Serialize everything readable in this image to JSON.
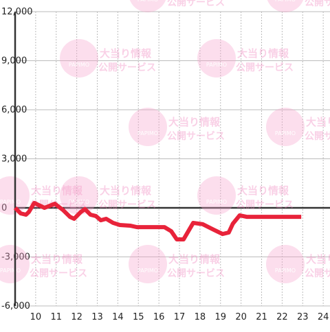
{
  "chart_data": {
    "type": "line",
    "watermark": {
      "logo": "PAPIMO",
      "line1": "大当り情報",
      "line2": "公開サービス"
    },
    "x": [
      9,
      9.27,
      9.53,
      9.67,
      9.93,
      10.43,
      10.93,
      11.33,
      11.67,
      11.87,
      12.2,
      12.4,
      12.67,
      12.93,
      13.17,
      13.43,
      13.77,
      14.1,
      14.6,
      14.93,
      16.27,
      16.6,
      16.87,
      17.2,
      17.67,
      18.13,
      18.67,
      19.1,
      19.4,
      19.6,
      19.93,
      20.27,
      22.93
    ],
    "series": [
      {
        "color": "#e8233a",
        "values": [
          0,
          -340,
          -420,
          -250,
          300,
          0,
          250,
          -130,
          -550,
          -670,
          -250,
          -80,
          -420,
          -500,
          -760,
          -670,
          -920,
          -1050,
          -1090,
          -1180,
          -1180,
          -1430,
          -1930,
          -1930,
          -920,
          -1000,
          -1340,
          -1600,
          -1510,
          -970,
          -460,
          -550,
          -550
        ]
      }
    ],
    "xlim": [
      9,
      24.33
    ],
    "xticks": [
      10,
      11,
      12,
      13,
      14,
      15,
      16,
      17,
      18,
      19,
      20,
      21,
      22,
      23,
      24
    ],
    "ylim": [
      -6000,
      12000
    ],
    "yticks": [
      {
        "value": 12000,
        "label": "12,000"
      },
      {
        "value": 9000,
        "label": "9,000"
      },
      {
        "value": 6000,
        "label": "6,000"
      },
      {
        "value": 3000,
        "label": "3,000"
      },
      0,
      {
        "value": -3000,
        "label": "-3,000"
      },
      {
        "value": -6000,
        "label": "-6,000"
      }
    ],
    "grid": true
  }
}
